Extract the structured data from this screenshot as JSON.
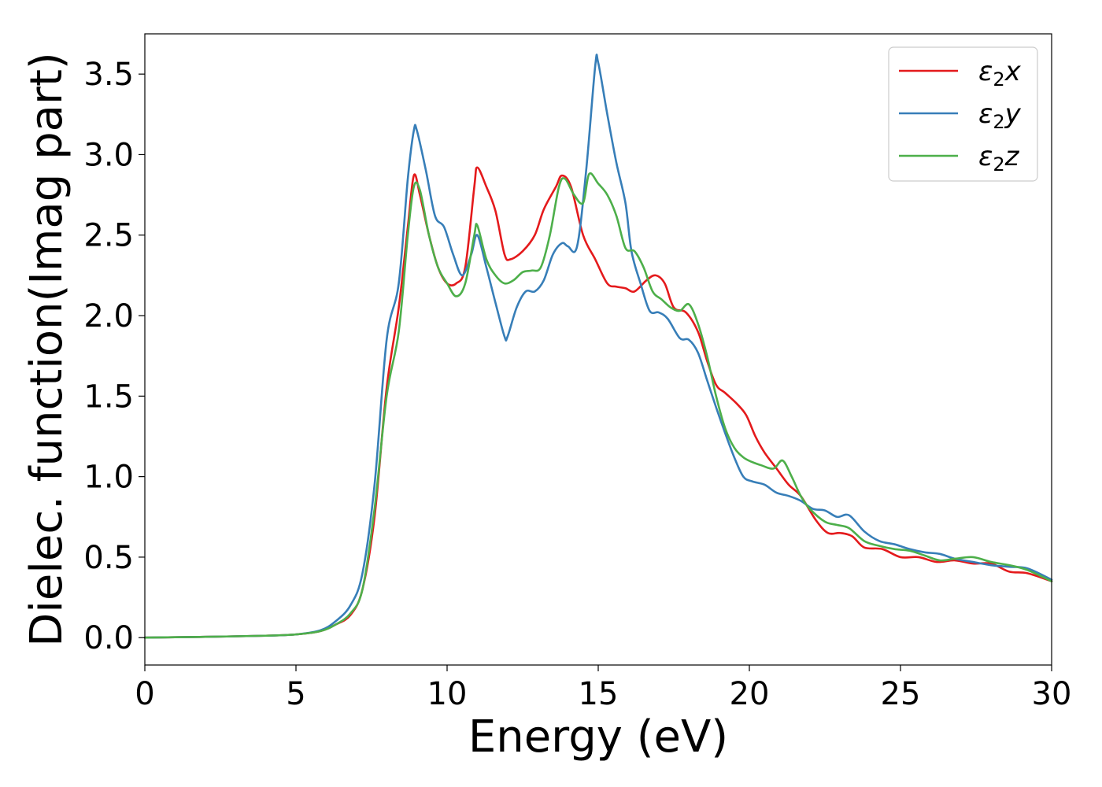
{
  "chart_data": {
    "type": "line",
    "xlabel": "Energy (eV)",
    "ylabel": "Dielec. function(Imag part)",
    "xlim": [
      0,
      30
    ],
    "ylim": [
      -0.17,
      3.75
    ],
    "xticks": [
      0,
      5,
      10,
      15,
      20,
      25,
      30
    ],
    "xtick_labels": [
      "0",
      "5",
      "10",
      "15",
      "20",
      "25",
      "30"
    ],
    "yticks": [
      0.0,
      0.5,
      1.0,
      1.5,
      2.0,
      2.5,
      3.0,
      3.5
    ],
    "ytick_labels": [
      "0.0",
      "0.5",
      "1.0",
      "1.5",
      "2.0",
      "2.5",
      "3.0",
      "3.5"
    ],
    "grid": false,
    "legend_position": "top-right",
    "series": [
      {
        "name": "ε2x",
        "legend_base": "ε",
        "legend_sub": "2",
        "legend_var": "x",
        "color": "#e41a1c",
        "x": [
          0,
          2,
          4,
          5,
          5.8,
          6.3,
          6.8,
          7.2,
          7.6,
          8.0,
          8.4,
          8.7,
          8.9,
          9.1,
          9.4,
          9.7,
          10.0,
          10.3,
          10.6,
          10.9,
          11.0,
          11.3,
          11.6,
          11.9,
          12.1,
          12.5,
          12.9,
          13.2,
          13.6,
          13.8,
          14.1,
          14.5,
          14.9,
          15.3,
          15.6,
          15.9,
          16.2,
          16.6,
          16.9,
          17.2,
          17.5,
          17.9,
          18.3,
          18.6,
          18.9,
          19.2,
          19.6,
          19.9,
          20.2,
          20.5,
          20.9,
          21.3,
          21.7,
          22.2,
          22.6,
          23.0,
          23.4,
          23.8,
          24.4,
          25.0,
          25.6,
          26.2,
          26.8,
          27.4,
          28.0,
          28.6,
          29.2,
          30.0
        ],
        "values": [
          0.0,
          0.005,
          0.012,
          0.02,
          0.04,
          0.08,
          0.14,
          0.3,
          0.75,
          1.55,
          2.05,
          2.55,
          2.87,
          2.75,
          2.5,
          2.3,
          2.2,
          2.2,
          2.3,
          2.8,
          2.92,
          2.8,
          2.65,
          2.38,
          2.35,
          2.4,
          2.5,
          2.66,
          2.8,
          2.87,
          2.8,
          2.5,
          2.35,
          2.2,
          2.18,
          2.17,
          2.15,
          2.22,
          2.25,
          2.2,
          2.05,
          2.02,
          1.9,
          1.72,
          1.57,
          1.52,
          1.45,
          1.38,
          1.25,
          1.15,
          1.05,
          0.95,
          0.88,
          0.73,
          0.65,
          0.65,
          0.63,
          0.56,
          0.55,
          0.5,
          0.5,
          0.47,
          0.48,
          0.46,
          0.46,
          0.41,
          0.4,
          0.35
        ]
      },
      {
        "name": "ε2y",
        "legend_base": "ε",
        "legend_sub": "2",
        "legend_var": "y",
        "color": "#377eb8",
        "x": [
          0,
          2,
          4,
          5,
          5.8,
          6.3,
          6.8,
          7.2,
          7.6,
          8.0,
          8.4,
          8.7,
          8.9,
          9.0,
          9.3,
          9.6,
          9.9,
          10.2,
          10.5,
          10.8,
          11.0,
          11.3,
          11.6,
          11.9,
          12.0,
          12.3,
          12.6,
          12.9,
          13.2,
          13.5,
          13.8,
          14.0,
          14.3,
          14.6,
          14.9,
          15.0,
          15.3,
          15.6,
          15.9,
          16.1,
          16.4,
          16.7,
          17.0,
          17.3,
          17.7,
          18.0,
          18.3,
          18.6,
          18.9,
          19.2,
          19.5,
          19.8,
          20.1,
          20.5,
          20.9,
          21.3,
          21.7,
          22.1,
          22.5,
          22.9,
          23.3,
          23.8,
          24.3,
          24.8,
          25.3,
          25.8,
          26.3,
          26.8,
          27.4,
          28.0,
          28.6,
          29.2,
          30.0
        ],
        "values": [
          0.0,
          0.005,
          0.012,
          0.02,
          0.045,
          0.1,
          0.2,
          0.4,
          0.95,
          1.85,
          2.2,
          2.85,
          3.15,
          3.15,
          2.9,
          2.62,
          2.55,
          2.38,
          2.25,
          2.38,
          2.5,
          2.3,
          2.08,
          1.87,
          1.87,
          2.05,
          2.15,
          2.15,
          2.22,
          2.38,
          2.45,
          2.43,
          2.43,
          2.9,
          3.55,
          3.57,
          3.25,
          2.95,
          2.7,
          2.4,
          2.2,
          2.03,
          2.02,
          1.98,
          1.86,
          1.85,
          1.77,
          1.6,
          1.43,
          1.27,
          1.12,
          1.0,
          0.97,
          0.95,
          0.9,
          0.88,
          0.85,
          0.8,
          0.79,
          0.75,
          0.76,
          0.66,
          0.6,
          0.58,
          0.55,
          0.53,
          0.52,
          0.49,
          0.47,
          0.45,
          0.44,
          0.43,
          0.36
        ]
      },
      {
        "name": "ε2z",
        "legend_base": "ε",
        "legend_sub": "2",
        "legend_var": "z",
        "color": "#4daf4a",
        "x": [
          0,
          2,
          4,
          5,
          5.8,
          6.3,
          6.8,
          7.2,
          7.6,
          8.0,
          8.4,
          8.7,
          8.9,
          9.1,
          9.4,
          9.7,
          10.0,
          10.3,
          10.6,
          10.9,
          11.0,
          11.3,
          11.6,
          11.9,
          12.2,
          12.5,
          12.8,
          13.1,
          13.4,
          13.7,
          13.9,
          14.2,
          14.5,
          14.7,
          15.0,
          15.3,
          15.6,
          15.9,
          16.2,
          16.5,
          16.8,
          17.1,
          17.4,
          17.7,
          18.0,
          18.3,
          18.6,
          18.9,
          19.2,
          19.5,
          19.8,
          20.1,
          20.4,
          20.8,
          21.1,
          21.4,
          21.7,
          22.0,
          22.5,
          22.9,
          23.3,
          23.8,
          24.3,
          24.8,
          25.3,
          25.8,
          26.3,
          26.8,
          27.4,
          28.0,
          28.6,
          29.2,
          30.0
        ],
        "values": [
          0.0,
          0.005,
          0.012,
          0.02,
          0.04,
          0.08,
          0.15,
          0.3,
          0.8,
          1.5,
          1.9,
          2.5,
          2.8,
          2.78,
          2.5,
          2.3,
          2.2,
          2.12,
          2.2,
          2.5,
          2.56,
          2.35,
          2.25,
          2.2,
          2.22,
          2.27,
          2.28,
          2.3,
          2.5,
          2.8,
          2.85,
          2.75,
          2.7,
          2.88,
          2.82,
          2.75,
          2.62,
          2.42,
          2.4,
          2.3,
          2.15,
          2.1,
          2.05,
          2.03,
          2.07,
          1.95,
          1.75,
          1.5,
          1.3,
          1.18,
          1.12,
          1.09,
          1.07,
          1.05,
          1.1,
          1.0,
          0.88,
          0.8,
          0.72,
          0.7,
          0.68,
          0.6,
          0.57,
          0.55,
          0.54,
          0.51,
          0.48,
          0.49,
          0.5,
          0.47,
          0.45,
          0.42,
          0.35
        ]
      }
    ]
  }
}
